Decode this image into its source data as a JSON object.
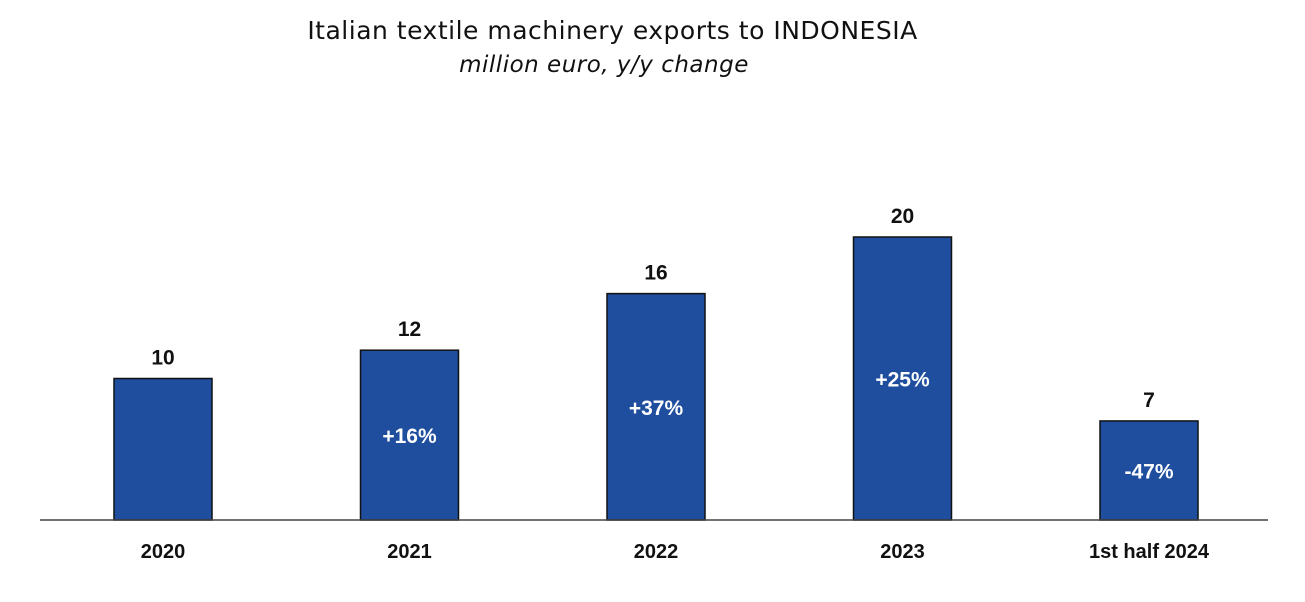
{
  "chart_data": {
    "type": "bar",
    "title": "Italian textile machinery exports to INDONESIA",
    "subtitle": "million euro, y/y change",
    "categories": [
      "2020",
      "2021",
      "2022",
      "2023",
      "1st half 2024"
    ],
    "values": [
      10,
      12,
      16,
      20,
      7
    ],
    "value_labels": [
      "10",
      "12",
      "16",
      "20",
      "7"
    ],
    "yoy_change": [
      "",
      "+16%",
      "+37%",
      "+25%",
      "-47%"
    ],
    "ylim": [
      0,
      20
    ],
    "grid": false,
    "legend": "none",
    "colors": {
      "bar": "#1f4e9e",
      "bar_text": "#ffffff",
      "text": "#111111"
    }
  }
}
